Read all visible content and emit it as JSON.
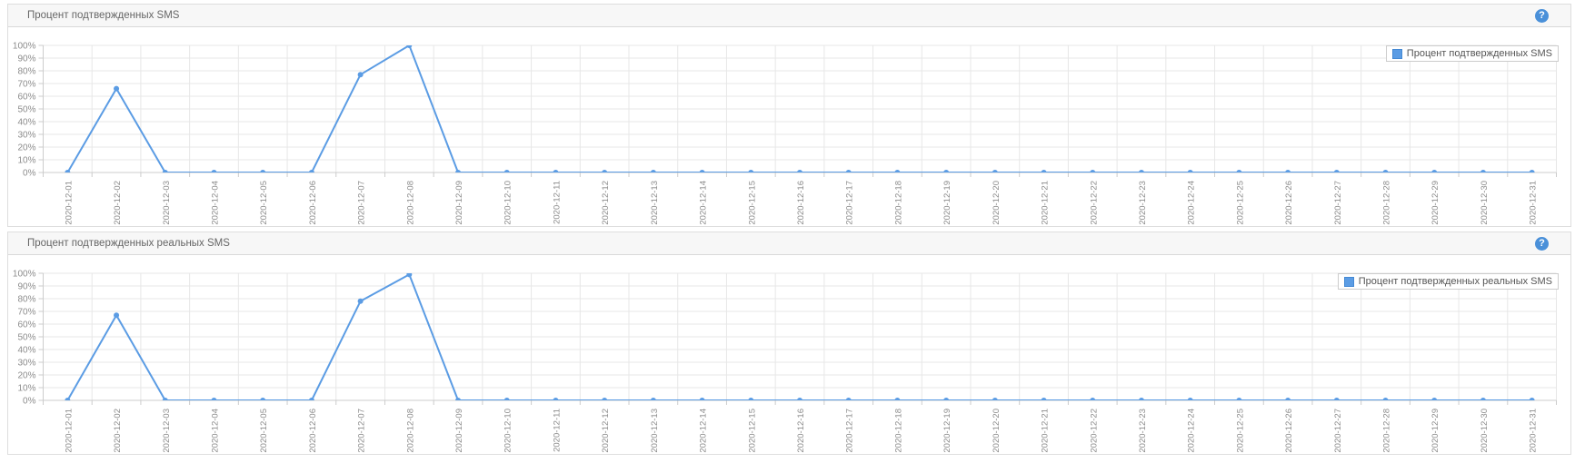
{
  "colors": {
    "series": "#5b9ce4",
    "series_border": "#4489d4",
    "help_bg": "#4a90d9",
    "grid": "#e7e7e7",
    "axis": "#cccccc",
    "tick_text": "#8c8c8c"
  },
  "panels": [
    {
      "title": "Процент подтвержденных SMS",
      "legend": "Процент подтвержденных SMS",
      "help_icon": "?"
    },
    {
      "title": "Процент подтвержденных реальных SMS",
      "legend": "Процент подтвержденных реальных SMS",
      "help_icon": "?"
    }
  ],
  "chart_data": [
    {
      "type": "line",
      "title": "Процент подтвержденных SMS",
      "x": [
        "2020-12-01",
        "2020-12-02",
        "2020-12-03",
        "2020-12-04",
        "2020-12-05",
        "2020-12-06",
        "2020-12-07",
        "2020-12-08",
        "2020-12-09",
        "2020-12-10",
        "2020-12-11",
        "2020-12-12",
        "2020-12-13",
        "2020-12-14",
        "2020-12-15",
        "2020-12-16",
        "2020-12-17",
        "2020-12-18",
        "2020-12-19",
        "2020-12-20",
        "2020-12-21",
        "2020-12-22",
        "2020-12-23",
        "2020-12-24",
        "2020-12-25",
        "2020-12-26",
        "2020-12-27",
        "2020-12-28",
        "2020-12-29",
        "2020-12-30",
        "2020-12-31"
      ],
      "values": [
        0,
        66,
        0,
        0,
        0,
        0,
        77,
        100,
        0,
        0,
        0,
        0,
        0,
        0,
        0,
        0,
        0,
        0,
        0,
        0,
        0,
        0,
        0,
        0,
        0,
        0,
        0,
        0,
        0,
        0,
        0
      ],
      "ylim": [
        0,
        100
      ],
      "xlabel": "",
      "ylabel": "",
      "y_ticks": [
        "0%",
        "10%",
        "20%",
        "30%",
        "40%",
        "50%",
        "60%",
        "70%",
        "80%",
        "90%",
        "100%"
      ],
      "legend": [
        "Процент подтвержденных SMS"
      ],
      "legend_position": "top-right",
      "grid": true
    },
    {
      "type": "line",
      "title": "Процент подтвержденных реальных SMS",
      "x": [
        "2020-12-01",
        "2020-12-02",
        "2020-12-03",
        "2020-12-04",
        "2020-12-05",
        "2020-12-06",
        "2020-12-07",
        "2020-12-08",
        "2020-12-09",
        "2020-12-10",
        "2020-12-11",
        "2020-12-12",
        "2020-12-13",
        "2020-12-14",
        "2020-12-15",
        "2020-12-16",
        "2020-12-17",
        "2020-12-18",
        "2020-12-19",
        "2020-12-20",
        "2020-12-21",
        "2020-12-22",
        "2020-12-23",
        "2020-12-24",
        "2020-12-25",
        "2020-12-26",
        "2020-12-27",
        "2020-12-28",
        "2020-12-29",
        "2020-12-30",
        "2020-12-31"
      ],
      "values": [
        0,
        67,
        0,
        0,
        0,
        0,
        78,
        99,
        0,
        0,
        0,
        0,
        0,
        0,
        0,
        0,
        0,
        0,
        0,
        0,
        0,
        0,
        0,
        0,
        0,
        0,
        0,
        0,
        0,
        0,
        0
      ],
      "ylim": [
        0,
        100
      ],
      "xlabel": "",
      "ylabel": "",
      "y_ticks": [
        "0%",
        "10%",
        "20%",
        "30%",
        "40%",
        "50%",
        "60%",
        "70%",
        "80%",
        "90%",
        "100%"
      ],
      "legend": [
        "Процент подтвержденных реальных SMS"
      ],
      "legend_position": "top-right",
      "grid": true
    }
  ]
}
